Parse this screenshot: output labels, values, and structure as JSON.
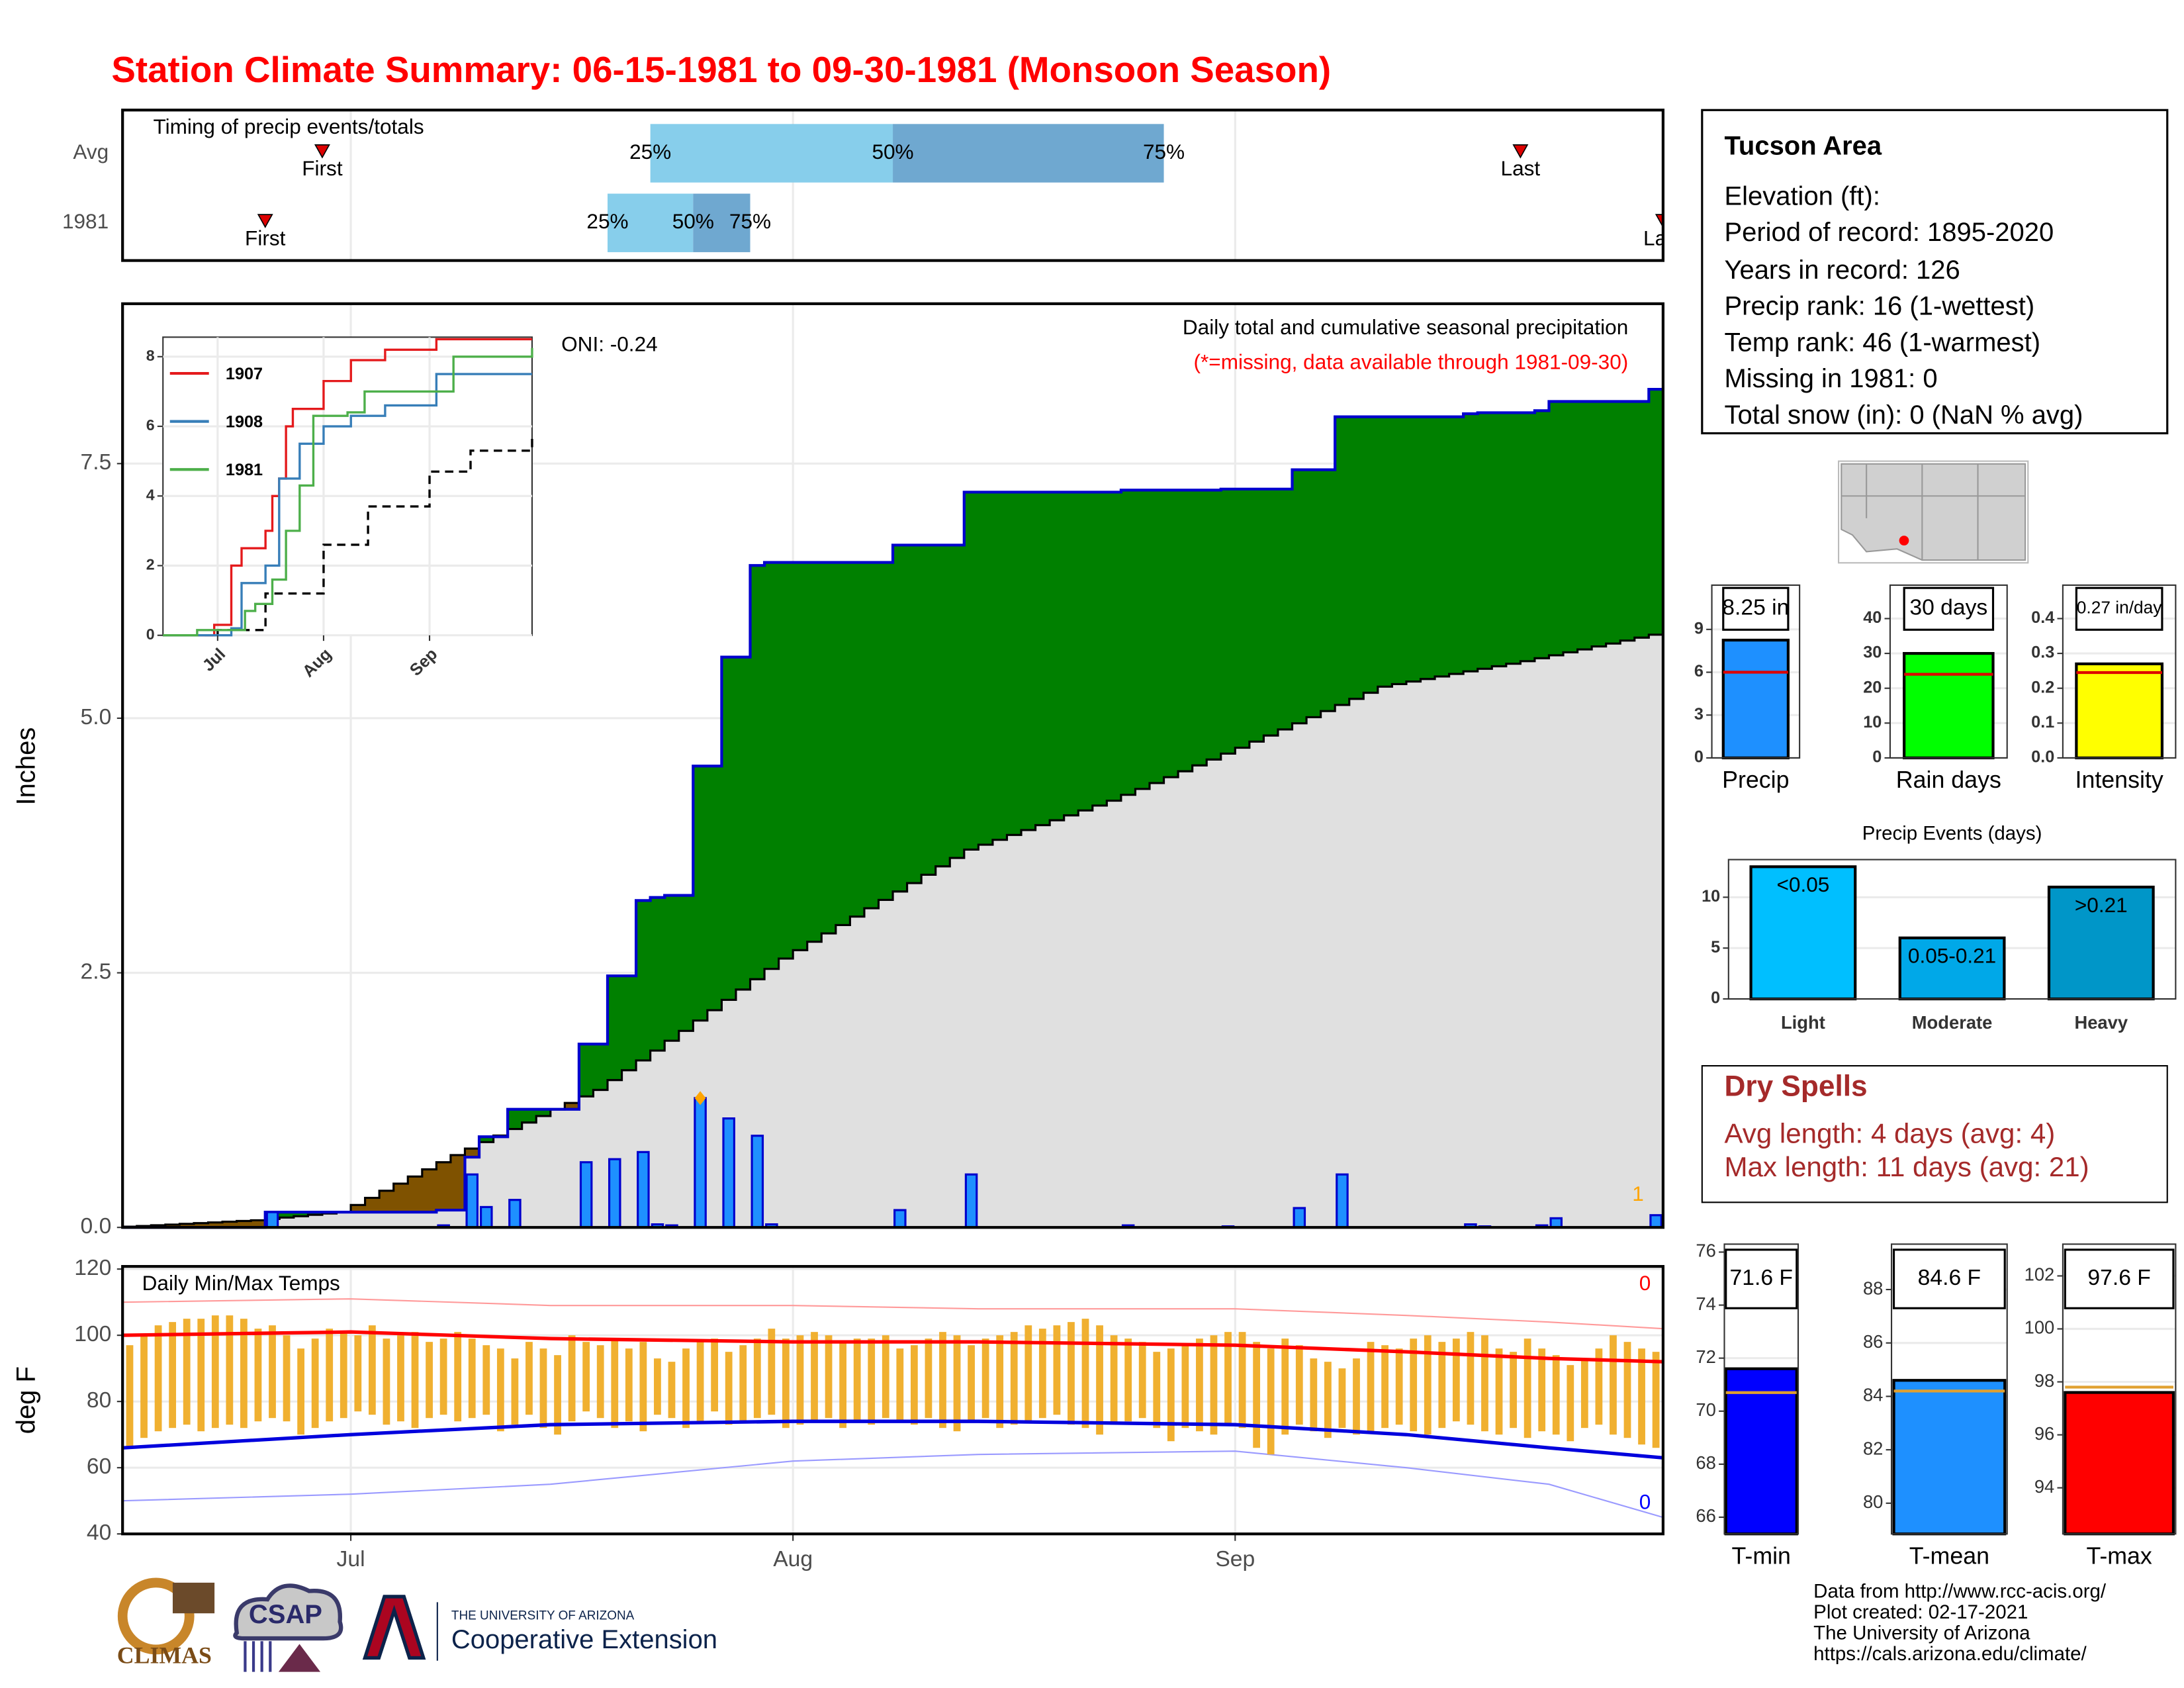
{
  "title": "Station Climate Summary: 06-15-1981 to 09-30-1981 (Monsoon Season)",
  "station": {
    "title": "Tucson Area",
    "lines": [
      "Elevation (ft):",
      "Period of record: 1895-2020",
      "Years in record: 126",
      "Precip rank: 16 (1-wettest)",
      "Temp rank: 46 (1-warmest)",
      "Missing in 1981: 0",
      "Total snow (in): 0 (NaN % avg)"
    ]
  },
  "dry_spells": {
    "title": "Dry Spells",
    "lines": [
      "Avg length: 4 days (avg: 4)",
      "Max length: 11 days (avg: 21)"
    ]
  },
  "footer": [
    "Data from http://www.rcc-acis.org/",
    "Plot created: 02-17-2021",
    "The University of Arizona",
    "https://cals.arizona.edu/climate/"
  ],
  "logos": [
    "CLIMAS",
    "CSAP",
    "THE UNIVERSITY OF ARIZONA",
    "Cooperative Extension"
  ],
  "chart_data": [
    {
      "type": "timing",
      "title": "Timing of precip events/totals",
      "categories": [
        "Avg",
        "1981"
      ],
      "xlim": [
        0,
        108
      ],
      "first": [
        14,
        10
      ],
      "q25": [
        37,
        34
      ],
      "q50": [
        54,
        40
      ],
      "q75": [
        73,
        44
      ],
      "last": [
        98,
        108
      ],
      "labels": {
        "first": "First",
        "last": "Last",
        "q25": "25%",
        "q50": "50%",
        "q75": "75%"
      },
      "colors": {
        "light": "#87ceeb",
        "dark": "#6fa8d0",
        "marker": "#dd0000"
      }
    },
    {
      "type": "area-step",
      "title": "Daily total and cumulative seasonal precipitation",
      "subtitle": "(*=missing, data available through 1981-09-30)",
      "annotation": "ONI: -0.24",
      "y_label": "Inches",
      "count_label": "1",
      "xlim": [
        0,
        108
      ],
      "ylim": [
        0,
        9.07
      ],
      "yticks": [
        {
          "value": 0,
          "label": "0.0"
        },
        {
          "value": 2.5,
          "label": "2.5"
        },
        {
          "value": 5,
          "label": "5.0"
        },
        {
          "value": 7.5,
          "label": "7.5"
        }
      ],
      "grid": true,
      "daily": {
        "color": "#1e90ff",
        "x": [
          10,
          22,
          24,
          25,
          27,
          32,
          34,
          36,
          37,
          38,
          40,
          42,
          44,
          45,
          54,
          59,
          70,
          77,
          82,
          85,
          94,
          95,
          99,
          100,
          107
        ],
        "values": [
          0.15,
          0.02,
          0.52,
          0.2,
          0.27,
          0.64,
          0.67,
          0.74,
          0.03,
          0.02,
          1.27,
          1.07,
          0.9,
          0.03,
          0.17,
          0.52,
          0.02,
          0.01,
          0.19,
          0.52,
          0.03,
          0.01,
          0.02,
          0.09,
          0.12
        ]
      },
      "average": {
        "color": "#000000",
        "x": [
          0,
          10,
          16,
          24,
          34,
          40,
          47,
          60,
          70,
          79,
          89,
          99,
          108
        ],
        "values": [
          0,
          0.07,
          0.15,
          0.71,
          1.35,
          1.93,
          2.64,
          3.71,
          4.19,
          4.71,
          5.31,
          5.56,
          5.82
        ]
      },
      "colors": {
        "above": "#008000",
        "below": "#7f5200",
        "base": "#e0e0e0",
        "line": "#0000cd",
        "max": "#ffa500"
      }
    },
    {
      "type": "temperature",
      "title": "Daily Min/Max Temps",
      "y_label": "deg F",
      "xlim": [
        0,
        108
      ],
      "xticks": [
        {
          "value": 16,
          "label": "Jul"
        },
        {
          "value": 47,
          "label": "Aug"
        },
        {
          "value": 78,
          "label": "Sep"
        }
      ],
      "ylim": [
        40,
        120.8
      ],
      "yticks": [
        40,
        60,
        80,
        100,
        120
      ],
      "grid": true,
      "bar_color": "#f0b030",
      "tmax": [
        97,
        100,
        103,
        104,
        105,
        105,
        106,
        106,
        105,
        102,
        103,
        100,
        96,
        99,
        102,
        101,
        100,
        103,
        99,
        100,
        101,
        98,
        99,
        101,
        99,
        97,
        96,
        93,
        98,
        96,
        94,
        100,
        98,
        97,
        99,
        96,
        98,
        93,
        92,
        96,
        98,
        99,
        95,
        97,
        99,
        102,
        99,
        100,
        101,
        100,
        98,
        99,
        99,
        100,
        96,
        97,
        99,
        101,
        100,
        97,
        99,
        100,
        101,
        103,
        102,
        103,
        104,
        105,
        103,
        100,
        99,
        98,
        95,
        96,
        97,
        99,
        100,
        101,
        101,
        98,
        96,
        99,
        97,
        93,
        92,
        90,
        93,
        98,
        97,
        96,
        99,
        100,
        98,
        99,
        101,
        100,
        96,
        95,
        99,
        96,
        94,
        91,
        93,
        96,
        100,
        98,
        96,
        95
      ],
      "tmin": [
        66,
        69,
        71,
        72,
        73,
        71,
        72,
        73,
        72,
        74,
        75,
        74,
        70,
        72,
        74,
        75,
        77,
        76,
        73,
        74,
        72,
        75,
        76,
        74,
        75,
        76,
        71,
        73,
        76,
        72,
        70,
        74,
        77,
        75,
        72,
        74,
        71,
        76,
        75,
        72,
        74,
        77,
        73,
        74,
        75,
        76,
        72,
        73,
        74,
        75,
        72,
        74,
        73,
        75,
        74,
        73,
        75,
        72,
        71,
        74,
        75,
        72,
        73,
        74,
        75,
        76,
        73,
        72,
        70,
        73,
        74,
        75,
        72,
        68,
        72,
        71,
        70,
        73,
        72,
        66,
        64,
        70,
        73,
        71,
        69,
        72,
        70,
        71,
        72,
        73,
        71,
        70,
        72,
        74,
        73,
        71,
        70,
        72,
        69,
        71,
        70,
        68,
        72,
        73,
        70,
        69,
        67,
        66
      ],
      "avg_max": {
        "color": "#ff0000",
        "x": [
          0,
          16,
          30,
          47,
          60,
          78,
          90,
          100,
          108
        ],
        "values": [
          100,
          101,
          99,
          98,
          98,
          97,
          95,
          93,
          92
        ]
      },
      "avg_min": {
        "color": "#0000dd",
        "x": [
          0,
          16,
          30,
          47,
          60,
          78,
          90,
          100,
          108
        ],
        "values": [
          66,
          70,
          73,
          74,
          74,
          73,
          70,
          66,
          63
        ]
      },
      "record_max": {
        "color": "#ff9a9a",
        "x": [
          0,
          16,
          30,
          47,
          60,
          78,
          90,
          100,
          108
        ],
        "values": [
          110,
          111,
          109,
          109,
          108,
          108,
          106,
          104,
          102
        ]
      },
      "record_min": {
        "color": "#9a9aff",
        "x": [
          0,
          16,
          30,
          47,
          60,
          78,
          90,
          100,
          108
        ],
        "values": [
          50,
          52,
          55,
          62,
          64,
          65,
          60,
          55,
          45
        ]
      },
      "record_high_count": 0,
      "record_low_count": 0
    },
    {
      "type": "line",
      "xlim": [
        0,
        108
      ],
      "xticks": [
        {
          "value": 16,
          "label": "Jul"
        },
        {
          "value": 47,
          "label": "Aug"
        },
        {
          "value": 78,
          "label": "Sep"
        }
      ],
      "ylim": [
        0,
        8.56
      ],
      "yticks": [
        0,
        2,
        4,
        6,
        8
      ],
      "series": [
        {
          "name": "1907",
          "color": "#e41a1c",
          "x": [
            0,
            15,
            20,
            23,
            25,
            30,
            32,
            34,
            36,
            38,
            47,
            55,
            65,
            80,
            108
          ],
          "values": [
            0,
            0.3,
            2,
            2.5,
            2.5,
            3,
            4,
            4.5,
            6,
            6.5,
            7.3,
            7.9,
            8.2,
            8.5,
            8.5
          ]
        },
        {
          "name": "1908",
          "color": "#377eb8",
          "x": [
            0,
            20,
            23,
            30,
            34,
            40,
            47,
            55,
            65,
            80,
            95,
            108
          ],
          "values": [
            0,
            0.2,
            1.5,
            2,
            4.5,
            5.5,
            6,
            6.3,
            6.6,
            7.5,
            7.5,
            7.5
          ]
        },
        {
          "name": "1981",
          "color": "#4daf4a",
          "x": [
            0,
            10,
            24,
            27,
            32,
            36,
            40,
            44,
            54,
            59,
            85,
            108
          ],
          "values": [
            0,
            0.15,
            0.7,
            0.9,
            1.6,
            3,
            4.3,
            6.3,
            6.4,
            7,
            8,
            8.25
          ]
        }
      ],
      "average": {
        "color": "#000000",
        "x": [
          0,
          16,
          30,
          47,
          60,
          78,
          90,
          108
        ],
        "values": [
          0,
          0.15,
          1.2,
          2.6,
          3.7,
          4.7,
          5.3,
          5.8
        ]
      }
    },
    {
      "type": "bar",
      "categories": [
        "Precip"
      ],
      "values": [
        8.25
      ],
      "value_labels": [
        "8.25 in"
      ],
      "average": 6,
      "color": "#1e90ff",
      "avg_color": "#dd0000",
      "ylim": [
        0,
        12.1
      ],
      "yticks": [
        0,
        3,
        6,
        9
      ],
      "grid": true
    },
    {
      "type": "bar",
      "categories": [
        "Rain days"
      ],
      "values": [
        30
      ],
      "value_labels": [
        "30 days"
      ],
      "average": 24,
      "color": "#00ff00",
      "avg_color": "#dd0000",
      "ylim": [
        0,
        49.6
      ],
      "yticks": [
        0,
        10,
        20,
        30,
        40
      ],
      "grid": true
    },
    {
      "type": "bar",
      "categories": [
        "Intensity"
      ],
      "values": [
        0.27
      ],
      "value_labels": [
        "0.27 in/day"
      ],
      "average": 0.245,
      "color": "#ffff00",
      "avg_color": "#dd0000",
      "ylim": [
        0,
        0.496
      ],
      "yticks": [
        {
          "value": 0,
          "label": "0.0"
        },
        0.1,
        0.2,
        0.3,
        0.4
      ],
      "grid": true
    },
    {
      "type": "bar",
      "title": "Precip Events (days)",
      "categories": [
        "Light",
        "Moderate",
        "Heavy"
      ],
      "values": [
        13,
        6,
        11
      ],
      "bar_labels": [
        "<0.05",
        "0.05-0.21",
        ">0.21"
      ],
      "colors": [
        "#00bfff",
        "#00a8e8",
        "#0096c8"
      ],
      "ylim": [
        0,
        13.7
      ],
      "yticks": [
        0,
        5,
        10
      ],
      "grid": true
    },
    {
      "type": "bar",
      "categories": [
        "T-min"
      ],
      "values": [
        71.6
      ],
      "value_labels": [
        "71.6 F"
      ],
      "average": 70.7,
      "color": "#0000ff",
      "avg_color": "#e0a030",
      "ylim": [
        65.37,
        76.3
      ],
      "yticks": [
        66,
        68,
        70,
        72,
        74,
        76
      ],
      "grid": true
    },
    {
      "type": "bar",
      "categories": [
        "T-mean"
      ],
      "values": [
        84.6
      ],
      "value_labels": [
        "84.6 F"
      ],
      "average": 84.2,
      "color": "#1e90ff",
      "avg_color": "#e0a030",
      "ylim": [
        78.85,
        89.7
      ],
      "yticks": [
        80,
        82,
        84,
        86,
        88
      ],
      "grid": true
    },
    {
      "type": "bar",
      "categories": [
        "T-max"
      ],
      "values": [
        97.6
      ],
      "value_labels": [
        "97.6 F"
      ],
      "average": 97.8,
      "color": "#ff0000",
      "avg_color": "#e0a030",
      "ylim": [
        92.26,
        103.2
      ],
      "yticks": [
        94,
        96,
        98,
        100,
        102
      ],
      "grid": true
    }
  ]
}
